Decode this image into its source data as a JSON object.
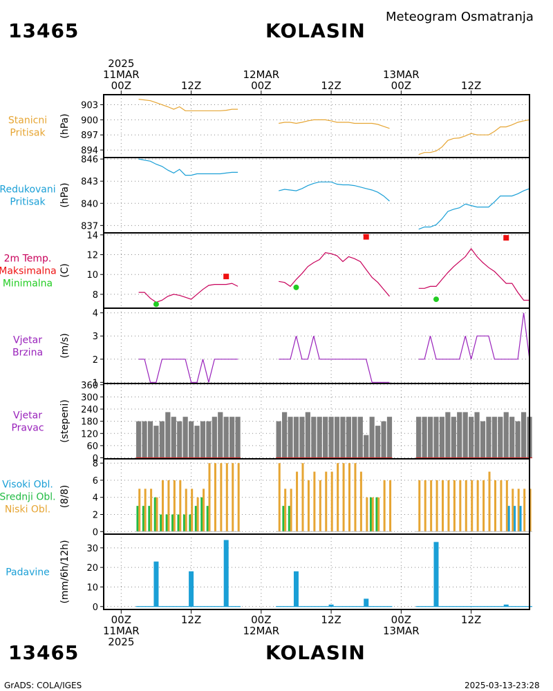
{
  "header": {
    "station_id": "13465",
    "station_name": "KOLASIN",
    "subtitle": "Meteogram Osmatranja"
  },
  "footer": {
    "station_id": "13465",
    "station_name": "KOLASIN",
    "credit": "GrADS: COLA/IGES",
    "timestamp": "2025-03-13-23:28"
  },
  "time_axis": {
    "year": "2025",
    "top_labels": [
      {
        "hours": 0,
        "lines": [
          "2025",
          "11MAR",
          "00Z"
        ]
      },
      {
        "hours": 12,
        "lines": [
          "12Z"
        ]
      },
      {
        "hours": 24,
        "lines": [
          "12MAR",
          "00Z"
        ]
      },
      {
        "hours": 36,
        "lines": [
          "12Z"
        ]
      },
      {
        "hours": 48,
        "lines": [
          "13MAR",
          "00Z"
        ]
      },
      {
        "hours": 60,
        "lines": [
          "12Z"
        ]
      }
    ],
    "bottom_labels": [
      {
        "hours": 0,
        "lines": [
          "00Z",
          "11MAR",
          "2025"
        ]
      },
      {
        "hours": 12,
        "lines": [
          "12Z"
        ]
      },
      {
        "hours": 24,
        "lines": [
          "00Z",
          "12MAR"
        ]
      },
      {
        "hours": 36,
        "lines": [
          "12Z"
        ]
      },
      {
        "hours": 48,
        "lines": [
          "00Z",
          "13MAR"
        ]
      },
      {
        "hours": 60,
        "lines": [
          "12Z"
        ]
      }
    ],
    "range_hours": [
      -3,
      70
    ]
  },
  "colors": {
    "station_pressure": "#e6a533",
    "reduced_pressure": "#1a9fd6",
    "temp_line": "#c8005a",
    "tmax": "#ee1111",
    "tmin": "#22cc22",
    "wind_speed": "#9922bb",
    "wind_dir_bar": "#7f7f7f",
    "wind_dir_base": "#cc2222",
    "high_cloud": "#1a9fd6",
    "mid_cloud": "#22bb44",
    "low_cloud": "#e6a533",
    "precip": "#1a9fd6"
  },
  "chart_data": [
    {
      "id": "station_pressure",
      "type": "line",
      "label_lines": [
        "Stanicni",
        "Pritisak"
      ],
      "ylabel": "(hPa)",
      "yticks": [
        894,
        897,
        900,
        903
      ],
      "ylim": [
        892.5,
        905
      ],
      "segments": [
        {
          "x": [
            3,
            5,
            6,
            7,
            8,
            9,
            10,
            11,
            12,
            13,
            14,
            15,
            16,
            17,
            18,
            19,
            20
          ],
          "y": [
            904.1,
            903.8,
            903.4,
            903.0,
            902.6,
            902.1,
            902.6,
            901.8,
            901.8,
            901.8,
            901.8,
            901.8,
            901.8,
            901.8,
            901.9,
            902.1,
            902.1
          ]
        },
        {
          "x": [
            27,
            28,
            29,
            30,
            31,
            32,
            33,
            34,
            35,
            36,
            37,
            38,
            39,
            40,
            41,
            42,
            43,
            44,
            45,
            46
          ],
          "y": [
            899.3,
            899.5,
            899.5,
            899.3,
            899.5,
            899.8,
            900.0,
            900.0,
            900.0,
            899.8,
            899.5,
            899.5,
            899.5,
            899.3,
            899.3,
            899.3,
            899.3,
            899.1,
            898.7,
            898.3
          ]
        },
        {
          "x": [
            51,
            52,
            53,
            54,
            55,
            56,
            57,
            58,
            59,
            60,
            61,
            62,
            63,
            64,
            65,
            66,
            67,
            68,
            69,
            70
          ],
          "y": [
            893.1,
            893.5,
            893.5,
            893.8,
            894.6,
            895.9,
            896.3,
            896.4,
            896.8,
            897.3,
            897.0,
            897.0,
            897.0,
            897.7,
            898.6,
            898.6,
            899.0,
            899.5,
            899.8,
            900.0
          ]
        }
      ]
    },
    {
      "id": "reduced_pressure",
      "type": "line",
      "label_lines": [
        "Redukovani",
        "Pritisak"
      ],
      "ylabel": "(hPa)",
      "yticks": [
        837,
        840,
        843,
        846
      ],
      "ylim": [
        836.0,
        846.2
      ],
      "segments": [
        {
          "x": [
            3,
            5,
            6,
            7,
            8,
            9,
            10,
            11,
            12,
            13,
            14,
            15,
            16,
            17,
            18,
            19,
            20
          ],
          "y": [
            846.0,
            845.7,
            845.3,
            845.0,
            844.5,
            844.1,
            844.6,
            843.8,
            843.8,
            844.0,
            844.0,
            844.0,
            844.0,
            844.0,
            844.1,
            844.2,
            844.2
          ]
        },
        {
          "x": [
            27,
            28,
            29,
            30,
            31,
            32,
            33,
            34,
            35,
            36,
            37,
            38,
            39,
            40,
            41,
            42,
            43,
            44,
            45,
            46
          ],
          "y": [
            841.7,
            841.9,
            841.8,
            841.7,
            842.0,
            842.4,
            842.7,
            842.9,
            842.9,
            842.9,
            842.6,
            842.5,
            842.5,
            842.4,
            842.2,
            842.0,
            841.8,
            841.5,
            841.0,
            840.3
          ]
        },
        {
          "x": [
            51,
            52,
            53,
            54,
            55,
            56,
            57,
            58,
            59,
            60,
            61,
            62,
            63,
            64,
            65,
            66,
            67,
            68,
            69,
            70
          ],
          "y": [
            836.5,
            836.8,
            836.8,
            837.1,
            837.9,
            838.9,
            839.2,
            839.4,
            839.9,
            839.7,
            839.5,
            839.5,
            839.5,
            840.2,
            841.0,
            841.0,
            841.0,
            841.3,
            841.7,
            842.0
          ]
        }
      ]
    },
    {
      "id": "temperature",
      "type": "line",
      "label_lines": [
        "2m Temp.",
        "Maksimalna",
        "Minimalna"
      ],
      "ylabel": "(C)",
      "yticks": [
        8,
        10,
        12,
        14
      ],
      "ylim": [
        6.6,
        14.2
      ],
      "segments": [
        {
          "x": [
            3,
            4,
            5,
            6,
            7,
            8,
            9,
            10,
            11,
            12,
            13,
            14,
            15,
            16,
            17,
            18,
            19,
            20
          ],
          "y": [
            8.2,
            8.2,
            7.6,
            7.2,
            7.4,
            7.8,
            8.0,
            7.9,
            7.7,
            7.5,
            8.0,
            8.5,
            8.9,
            9.0,
            9.0,
            9.0,
            9.1,
            8.8
          ]
        },
        {
          "x": [
            27,
            28,
            29,
            30,
            31,
            32,
            33,
            34,
            35,
            36,
            37,
            38,
            39,
            40,
            41,
            42,
            43,
            44,
            45,
            46
          ],
          "y": [
            9.3,
            9.2,
            8.8,
            9.5,
            10.1,
            10.8,
            11.2,
            11.5,
            12.2,
            12.1,
            11.9,
            11.3,
            11.8,
            11.6,
            11.3,
            10.5,
            9.7,
            9.2,
            8.5,
            7.8
          ]
        },
        {
          "x": [
            51,
            52,
            53,
            54,
            55,
            56,
            57,
            58,
            59,
            60,
            61,
            62,
            63,
            64,
            65,
            66,
            67,
            68,
            69,
            70
          ],
          "y": [
            8.6,
            8.6,
            8.8,
            8.8,
            9.5,
            10.2,
            10.8,
            11.3,
            11.8,
            12.6,
            11.8,
            11.2,
            10.7,
            10.3,
            9.7,
            9.1,
            9.1,
            8.2,
            7.4,
            7.4
          ]
        }
      ],
      "tmax": [
        {
          "x": 18,
          "y": 9.8
        },
        {
          "x": 42,
          "y": 13.8
        },
        {
          "x": 66,
          "y": 13.7
        }
      ],
      "tmin": [
        {
          "x": 6,
          "y": 7.0
        },
        {
          "x": 30,
          "y": 8.7
        },
        {
          "x": 54,
          "y": 7.5
        }
      ]
    },
    {
      "id": "wind_speed",
      "type": "line",
      "label_lines": [
        "Vjetar",
        "Brzina"
      ],
      "ylabel": "(m/s)",
      "yticks": [
        1,
        2,
        3,
        4
      ],
      "ylim": [
        0.95,
        4.2
      ],
      "segments": [
        {
          "x": [
            3,
            4,
            5,
            6,
            7,
            8,
            9,
            10,
            11,
            12,
            13,
            14,
            15,
            16,
            17,
            18,
            19,
            20
          ],
          "y": [
            2,
            2,
            1,
            1,
            2,
            2,
            2,
            2,
            2,
            1,
            1,
            2,
            1,
            2,
            2,
            2,
            2,
            2
          ]
        },
        {
          "x": [
            27,
            28,
            29,
            30,
            31,
            32,
            33,
            34,
            35,
            36,
            37,
            38,
            39,
            40,
            41,
            42,
            43,
            44,
            45,
            46
          ],
          "y": [
            2,
            2,
            2,
            3,
            2,
            2,
            3,
            2,
            2,
            2,
            2,
            2,
            2,
            2,
            2,
            2,
            1,
            1,
            1,
            1
          ]
        },
        {
          "x": [
            51,
            52,
            53,
            54,
            55,
            56,
            57,
            58,
            59,
            60,
            61,
            62,
            63,
            64,
            65,
            66,
            67,
            68,
            69,
            70
          ],
          "y": [
            2,
            2,
            3,
            2,
            2,
            2,
            2,
            2,
            3,
            2,
            3,
            3,
            3,
            2,
            2,
            2,
            2,
            2,
            4,
            2
          ]
        }
      ]
    },
    {
      "id": "wind_direction",
      "type": "bar",
      "label_lines": [
        "Vjetar",
        "Pravac"
      ],
      "ylabel": "(stepeni)",
      "yticks": [
        0,
        60,
        120,
        180,
        240,
        300,
        360
      ],
      "ylim": [
        -5,
        366
      ],
      "x": [
        3,
        4,
        5,
        6,
        7,
        8,
        9,
        10,
        11,
        12,
        13,
        14,
        15,
        16,
        17,
        18,
        19,
        20,
        27,
        28,
        29,
        30,
        31,
        32,
        33,
        34,
        35,
        36,
        37,
        38,
        39,
        40,
        41,
        42,
        43,
        44,
        45,
        46,
        51,
        52,
        53,
        54,
        55,
        56,
        57,
        58,
        59,
        60,
        61,
        62,
        63,
        64,
        65,
        66,
        67,
        68,
        69,
        70
      ],
      "values": [
        180,
        180,
        180,
        158,
        180,
        225,
        202,
        180,
        202,
        180,
        158,
        180,
        180,
        202,
        225,
        202,
        202,
        202,
        180,
        225,
        202,
        202,
        202,
        225,
        202,
        202,
        202,
        202,
        202,
        202,
        202,
        202,
        202,
        112,
        202,
        158,
        180,
        202,
        202,
        202,
        202,
        202,
        202,
        225,
        202,
        225,
        225,
        202,
        225,
        180,
        202,
        202,
        202,
        225,
        202,
        180,
        225,
        202
      ]
    },
    {
      "id": "clouds",
      "type": "bar",
      "label_lines": [
        "Visoki Obl.",
        "Srednji Obl.",
        "Niski Obl."
      ],
      "ylabel": "(8/8)",
      "yticks": [
        0,
        2,
        4,
        6,
        8
      ],
      "ylim": [
        -0.3,
        8.5
      ],
      "x": [
        3,
        4,
        5,
        6,
        7,
        8,
        9,
        10,
        11,
        12,
        13,
        14,
        15,
        16,
        17,
        18,
        19,
        20,
        27,
        28,
        29,
        30,
        31,
        32,
        33,
        34,
        35,
        36,
        37,
        38,
        39,
        40,
        41,
        42,
        43,
        44,
        45,
        46,
        51,
        52,
        53,
        54,
        55,
        56,
        57,
        58,
        59,
        60,
        61,
        62,
        63,
        64,
        65,
        66,
        67,
        68,
        69,
        70
      ],
      "series": [
        {
          "name": "Visoki Obl.",
          "values": [
            0,
            0,
            0,
            0,
            0,
            0,
            0,
            0,
            0,
            0,
            0,
            0,
            0,
            0,
            0,
            0,
            0,
            0,
            0,
            0,
            0,
            0,
            0,
            0,
            0,
            0,
            0,
            0,
            0,
            0,
            0,
            0,
            0,
            0,
            0,
            0,
            0,
            0,
            0,
            0,
            0,
            0,
            0,
            0,
            0,
            0,
            0,
            0,
            0,
            0,
            0,
            0,
            0,
            0,
            3,
            3,
            3,
            0
          ]
        },
        {
          "name": "Srednji Obl.",
          "values": [
            3,
            3,
            3,
            4,
            2,
            2,
            2,
            2,
            2,
            2,
            3,
            4,
            3,
            0,
            0,
            0,
            0,
            0,
            0,
            3,
            3,
            0,
            0,
            0,
            0,
            0,
            0,
            0,
            0,
            0,
            0,
            0,
            0,
            0,
            4,
            4,
            0,
            0,
            0,
            0,
            0,
            0,
            0,
            0,
            0,
            0,
            0,
            0,
            0,
            0,
            0,
            0,
            0,
            0,
            0,
            0,
            0,
            0
          ]
        },
        {
          "name": "Niski Obl.",
          "values": [
            5,
            5,
            5,
            4,
            6,
            6,
            6,
            6,
            5,
            5,
            4,
            5,
            8,
            8,
            8,
            8,
            8,
            8,
            8,
            5,
            5,
            7,
            8,
            6,
            7,
            6,
            7,
            7,
            8,
            8,
            8,
            8,
            7,
            4,
            4,
            4,
            6,
            6,
            6,
            6,
            6,
            6,
            6,
            6,
            6,
            6,
            6,
            6,
            6,
            6,
            7,
            6,
            6,
            6,
            5,
            5,
            5,
            5
          ]
        }
      ]
    },
    {
      "id": "precipitation",
      "type": "bar",
      "label_lines": [
        "Padavine"
      ],
      "ylabel": "(mm/6h/12h)",
      "yticks": [
        0,
        10,
        20,
        30
      ],
      "ylim": [
        -1.5,
        37
      ],
      "x": [
        3,
        4,
        5,
        6,
        7,
        8,
        9,
        10,
        11,
        12,
        13,
        14,
        15,
        16,
        17,
        18,
        19,
        20,
        27,
        28,
        29,
        30,
        31,
        32,
        33,
        34,
        35,
        36,
        37,
        38,
        39,
        40,
        41,
        42,
        43,
        44,
        45,
        46,
        51,
        52,
        53,
        54,
        55,
        56,
        57,
        58,
        59,
        60,
        61,
        62,
        63,
        64,
        65,
        66,
        67,
        68,
        69,
        70
      ],
      "values": [
        0,
        0,
        0,
        23,
        0,
        0,
        0,
        0,
        0,
        18,
        0,
        0,
        0,
        0,
        0,
        34,
        0,
        0,
        0,
        0,
        0,
        18,
        0,
        0,
        0,
        0,
        0,
        1,
        0,
        0,
        0,
        0,
        0,
        4,
        0,
        0,
        0,
        0,
        0,
        0,
        0,
        33,
        0,
        0,
        0,
        0,
        0,
        0,
        0,
        0,
        0,
        0,
        0,
        1,
        0,
        0,
        0,
        0
      ]
    }
  ]
}
